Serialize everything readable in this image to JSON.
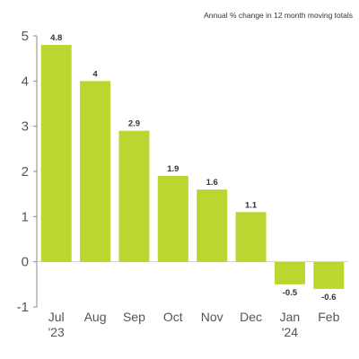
{
  "chart_data": {
    "type": "bar",
    "title": "",
    "subtitle": "Annual % change in 12 month moving totals",
    "xlabel": "",
    "ylabel": "",
    "categories": [
      {
        "month": "Jul",
        "year": "'23"
      },
      {
        "month": "Aug",
        "year": ""
      },
      {
        "month": "Sep",
        "year": ""
      },
      {
        "month": "Oct",
        "year": ""
      },
      {
        "month": "Nov",
        "year": ""
      },
      {
        "month": "Dec",
        "year": ""
      },
      {
        "month": "Jan",
        "year": "'24"
      },
      {
        "month": "Feb",
        "year": ""
      }
    ],
    "values": [
      4.8,
      4,
      2.9,
      1.9,
      1.6,
      1.1,
      -0.5,
      -0.6
    ],
    "value_labels": [
      "4.8",
      "4",
      "2.9",
      "1.9",
      "1.6",
      "1.1",
      "-0.5",
      "-0.6"
    ],
    "ylim": [
      -1,
      5
    ],
    "yticks": [
      "5",
      "4",
      "3",
      "2",
      "1",
      "0",
      "-1"
    ],
    "grid": false,
    "legend": "none",
    "bar_color": "#bcd530",
    "axis_color": "#888888",
    "text_color": "#555555"
  }
}
